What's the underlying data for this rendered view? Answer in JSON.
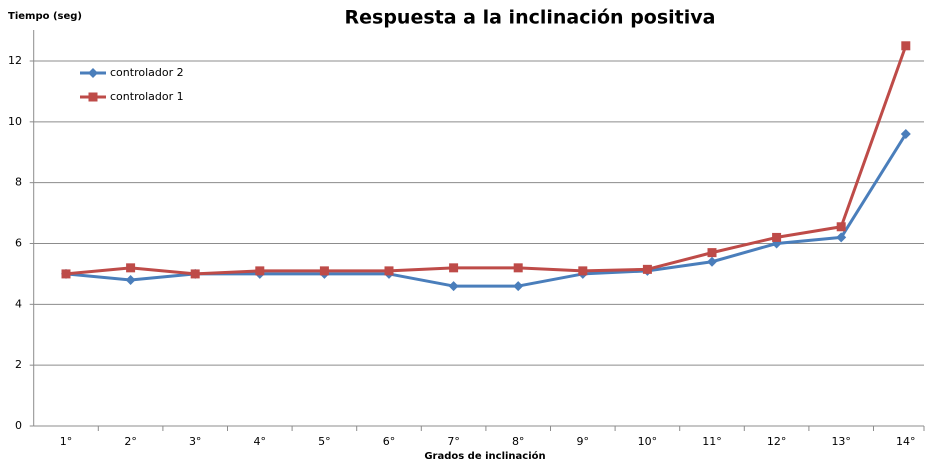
{
  "chart_data": {
    "type": "line",
    "title": "Respuesta a la inclinación positiva",
    "y_label": "Tiempo (seg)",
    "x_label": "Grados de inclinación",
    "categories": [
      "1°",
      "2°",
      "3°",
      "4°",
      "5°",
      "6°",
      "7°",
      "8°",
      "9°",
      "10°",
      "11°",
      "12°",
      "13°",
      "14°"
    ],
    "series": [
      {
        "name": "controlador 2",
        "color": "#4a7ebb",
        "marker": "diamond",
        "values": [
          5,
          4.8,
          5,
          5,
          5,
          5,
          4.6,
          4.6,
          5,
          5.1,
          5.4,
          6,
          6.2,
          9.6
        ]
      },
      {
        "name": "controlador 1",
        "color": "#be4b48",
        "marker": "square",
        "values": [
          5,
          5.2,
          5,
          5.1,
          5.1,
          5.1,
          5.2,
          5.2,
          5.1,
          5.15,
          5.7,
          6.2,
          6.55,
          12.5
        ]
      }
    ],
    "ylim": [
      0,
      13
    ],
    "yticks": [
      0,
      2,
      4,
      6,
      8,
      10,
      12
    ],
    "grid": true,
    "legend": "top-left"
  }
}
